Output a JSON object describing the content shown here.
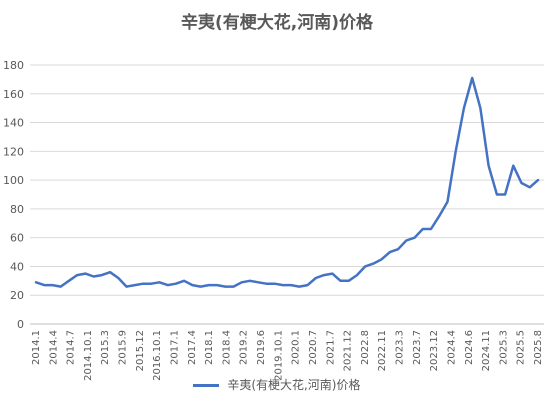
{
  "chart_data": {
    "type": "line",
    "title": "辛夷(有梗大花,河南)价格",
    "xlabel": "",
    "ylabel": "",
    "ylim": [
      0,
      180
    ],
    "yticks": [
      0,
      20,
      40,
      60,
      80,
      100,
      120,
      140,
      160,
      180
    ],
    "grid": true,
    "legend_position": "bottom",
    "color": "#4472c4",
    "x_tick_labels": [
      "2014.1",
      "2014.4",
      "2014.7",
      "2014.10.1",
      "2015.3",
      "2015.9",
      "2015.12",
      "2016.10.1",
      "2017.1",
      "2017.4",
      "2018.1",
      "2018.4",
      "2019.2",
      "2019.6",
      "2019.10.1",
      "2020.1",
      "2020.7",
      "2021.7",
      "2021.12",
      "2022.8",
      "2022.11",
      "2023.3",
      "2023.7",
      "2023.12",
      "2024.4",
      "2024.6",
      "2024.11",
      "2025.3",
      "2025.5",
      "2025.8"
    ],
    "series": [
      {
        "name": "辛夷(有梗大花,河南)价格",
        "values": [
          29,
          27,
          27,
          26,
          30,
          34,
          35,
          33,
          34,
          36,
          32,
          26,
          27,
          28,
          28,
          29,
          27,
          28,
          30,
          27,
          26,
          27,
          27,
          26,
          26,
          29,
          30,
          29,
          28,
          28,
          27,
          27,
          26,
          27,
          32,
          34,
          35,
          30,
          30,
          34,
          40,
          42,
          45,
          50,
          52,
          58,
          60,
          66,
          66,
          75,
          85,
          120,
          150,
          171,
          150,
          110,
          90,
          90,
          110,
          98,
          95,
          100
        ]
      }
    ]
  }
}
